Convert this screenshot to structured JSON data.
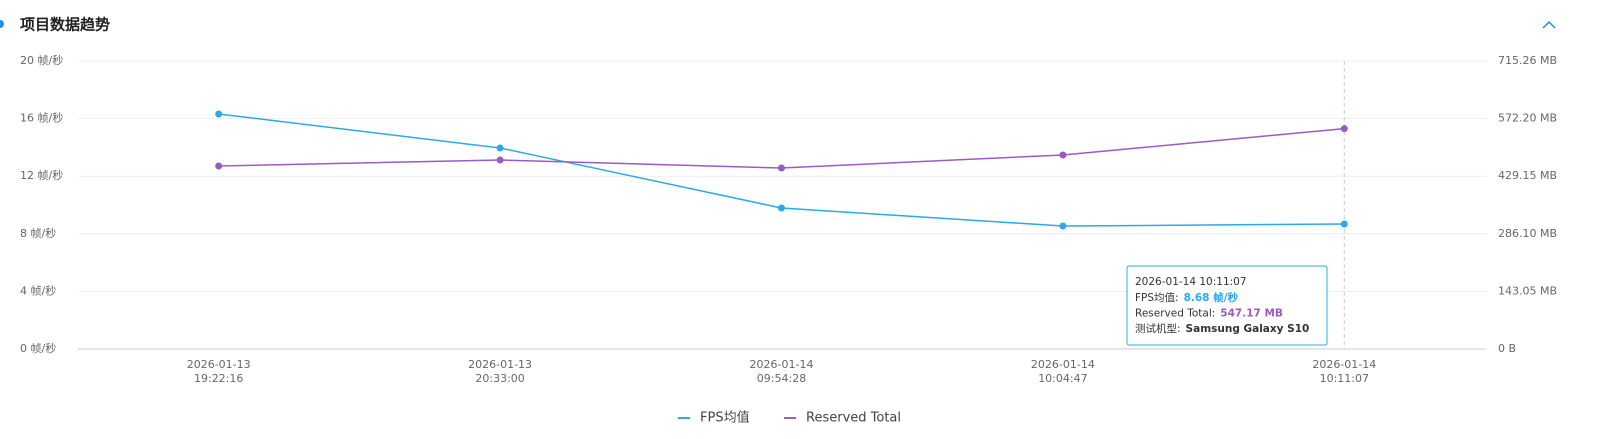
{
  "chart_data": {
    "type": "line",
    "title": "项目数据趋势",
    "categories": [
      [
        "2026-01-13",
        "19:22:16"
      ],
      [
        "2026-01-13",
        "20:33:00"
      ],
      [
        "2026-01-14",
        "09:54:28"
      ],
      [
        "2026-01-14",
        "10:04:47"
      ],
      [
        "2026-01-14",
        "10:11:07"
      ]
    ],
    "series": [
      {
        "name": "FPS均值",
        "color": "#29abe8",
        "values": [
          16.32,
          13.96,
          9.79,
          8.54,
          8.68
        ],
        "value_labels": [
          null,
          null,
          null,
          null,
          "8.68 帧/秒"
        ]
      },
      {
        "name": "Reserved Total",
        "color": "#9a5bc6",
        "axis": "y2",
        "values": [
          454.5,
          469.4,
          449.5,
          481.8,
          547.17
        ],
        "value_labels": [
          null,
          null,
          null,
          null,
          "547.17 MB"
        ]
      }
    ],
    "ylim": [
      0,
      20
    ],
    "yticks": [
      {
        "value": 0,
        "label": "0 帧/秒"
      },
      {
        "value": 4,
        "label": "4 帧/秒"
      },
      {
        "value": 8,
        "label": "8 帧/秒"
      },
      {
        "value": 12,
        "label": "12 帧/秒"
      },
      {
        "value": 16,
        "label": "16 帧/秒"
      },
      {
        "value": 20,
        "label": "20 帧/秒"
      }
    ],
    "y2lim": [
      0,
      715.26
    ],
    "y2ticks": [
      {
        "value": 0,
        "label": "0 B"
      },
      {
        "value": 143.05,
        "label": "143.05 MB"
      },
      {
        "value": 286.1,
        "label": "286.10 MB"
      },
      {
        "value": 429.15,
        "label": "429.15 MB"
      },
      {
        "value": 572.2,
        "label": "572.20 MB"
      },
      {
        "value": 715.26,
        "label": "715.26 MB"
      }
    ],
    "grid": true,
    "legend": "bottom",
    "tooltip": {
      "title": "2026-01-14 10:11:07",
      "index": 4,
      "rows": [
        {
          "label": "FPS均值:",
          "series": 0
        },
        {
          "label": "Reserved Total:",
          "series": 1
        },
        {
          "label": "测试机型:",
          "text": "Samsung Galaxy S10"
        }
      ]
    }
  }
}
